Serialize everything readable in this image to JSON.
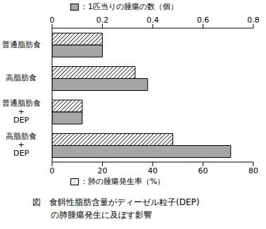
{
  "chart_data": {
    "type": "bar",
    "orientation": "horizontal",
    "title": "図　食餌性脂肪含量がディーゼル粒子(DEP)\nの肺腫瘍発生に及ぼす影響",
    "ylabel": "：肺の腫瘍発生率（%）",
    "y2label": "：1匹当りの腫瘍の数（個）",
    "categories": [
      "普通脂肪食",
      "高脂肪食",
      "普通脂肪食+DEP",
      "高脂肪食+DEP"
    ],
    "series": [
      {
        "name": "肺の腫瘍発生率（%）",
        "color": "#000000",
        "marker": "hatch",
        "values": [
          20,
          33,
          12,
          48
        ]
      },
      {
        "name": "1匹当りの腫瘍の数（個）",
        "color": "#a6a6a6",
        "axis": "y2",
        "values": [
          0.2,
          0.38,
          0.12,
          0.71
        ]
      }
    ],
    "ylim": [
      0,
      80
    ],
    "yticks": [
      0,
      20,
      40,
      60,
      80
    ],
    "y2lim": [
      0,
      0.8
    ],
    "y2ticks": [
      0,
      0.2,
      0.4,
      0.6,
      0.8
    ],
    "grid": false
  }
}
